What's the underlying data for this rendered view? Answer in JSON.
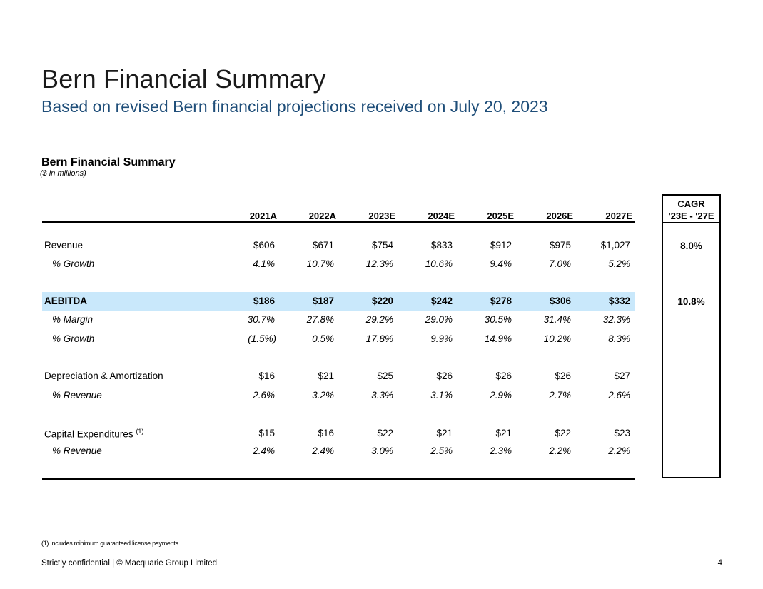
{
  "page": {
    "title": "Bern Financial Summary",
    "subtitle": "Based on revised Bern financial projections received on July 20, 2023"
  },
  "table": {
    "title": "Bern Financial Summary",
    "units": "($ in millions)",
    "years": [
      "2021A",
      "2022A",
      "2023E",
      "2024E",
      "2025E",
      "2026E",
      "2027E"
    ],
    "cagr_header_line1": "CAGR",
    "cagr_header_line2": "'23E - '27E",
    "rows": [
      {
        "label": "Revenue",
        "sup": "",
        "values": [
          "$606",
          "$671",
          "$754",
          "$833",
          "$912",
          "$975",
          "$1,027"
        ],
        "cagr": "8.0%"
      },
      {
        "label": "% Growth",
        "sup": "",
        "values": [
          "4.1%",
          "10.7%",
          "12.3%",
          "10.6%",
          "9.4%",
          "7.0%",
          "5.2%"
        ],
        "cagr": ""
      },
      {
        "label": "AEBITDA",
        "sup": "",
        "values": [
          "$186",
          "$187",
          "$220",
          "$242",
          "$278",
          "$306",
          "$332"
        ],
        "cagr": "10.8%"
      },
      {
        "label": "% Margin",
        "sup": "",
        "values": [
          "30.7%",
          "27.8%",
          "29.2%",
          "29.0%",
          "30.5%",
          "31.4%",
          "32.3%"
        ],
        "cagr": ""
      },
      {
        "label": "% Growth",
        "sup": "",
        "values": [
          "(1.5%)",
          "0.5%",
          "17.8%",
          "9.9%",
          "14.9%",
          "10.2%",
          "8.3%"
        ],
        "cagr": ""
      },
      {
        "label": "Depreciation & Amortization",
        "sup": "",
        "values": [
          "$16",
          "$21",
          "$25",
          "$26",
          "$26",
          "$26",
          "$27"
        ],
        "cagr": ""
      },
      {
        "label": "% Revenue",
        "sup": "",
        "values": [
          "2.6%",
          "3.2%",
          "3.3%",
          "3.1%",
          "2.9%",
          "2.7%",
          "2.6%"
        ],
        "cagr": ""
      },
      {
        "label": "Capital Expenditures",
        "sup": "(1)",
        "values": [
          "$15",
          "$16",
          "$22",
          "$21",
          "$21",
          "$22",
          "$23"
        ],
        "cagr": ""
      },
      {
        "label": "% Revenue",
        "sup": "",
        "values": [
          "2.4%",
          "2.4%",
          "3.0%",
          "2.5%",
          "2.3%",
          "2.2%",
          "2.2%"
        ],
        "cagr": ""
      }
    ]
  },
  "footnote": "(1) Includes minimum guaranteed license payments.",
  "footer": {
    "text": "Strictly confidential | © Macquarie Group Limited",
    "page_number": "4"
  }
}
